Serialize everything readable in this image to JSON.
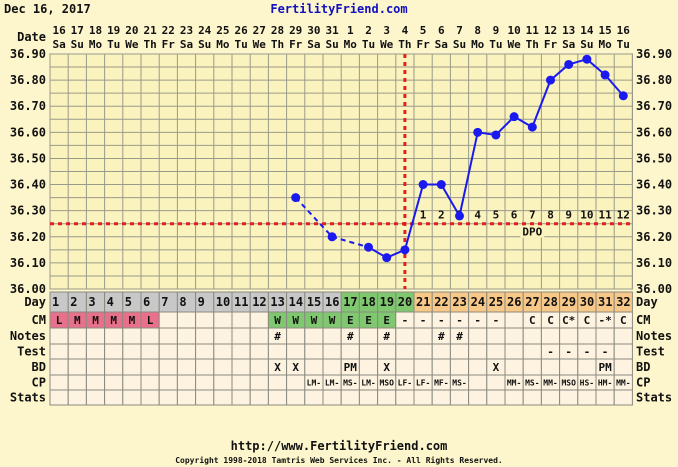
{
  "header": {
    "date": "Dec 16, 2017",
    "site": "FertilityFriend.com"
  },
  "footer": {
    "url": "http://www.FertilityFriend.com",
    "copyright": "Copyright 1998-2018 Tamtris Web Services Inc. - All Rights Reserved."
  },
  "labels": {
    "date": "Date",
    "day": "Day",
    "cm": "CM",
    "notes": "Notes",
    "test": "Test",
    "bd": "BD",
    "cp": "CP",
    "stats": "Stats",
    "dpo": "DPO"
  },
  "colors": {
    "background": "#fdf5cc",
    "plot": "#fbf3bd",
    "temp_line": "#1a1aee",
    "coverline": "#e02020",
    "day_gray": "#c8c8c8",
    "day_green": "#80c870",
    "day_orange": "#f8c888",
    "cm_pink": "#e8708a",
    "cm_green": "#80c870",
    "cell": "#fdf3e0"
  },
  "chart_data": {
    "type": "line",
    "ylim": [
      36.0,
      36.9
    ],
    "ytick_labels": [
      "36.00",
      "36.10",
      "36.20",
      "36.30",
      "36.40",
      "36.50",
      "36.60",
      "36.70",
      "36.80",
      "36.90"
    ],
    "grid": true,
    "dates": [
      "16",
      "17",
      "18",
      "19",
      "20",
      "21",
      "22",
      "23",
      "24",
      "25",
      "26",
      "27",
      "28",
      "29",
      "30",
      "31",
      "1",
      "2",
      "3",
      "4",
      "5",
      "6",
      "7",
      "8",
      "9",
      "10",
      "11",
      "12",
      "13",
      "14",
      "15",
      "16"
    ],
    "weekdays": [
      "Sa",
      "Su",
      "Mo",
      "Tu",
      "We",
      "Th",
      "Fr",
      "Sa",
      "Su",
      "Mo",
      "Tu",
      "We",
      "Th",
      "Fr",
      "Sa",
      "Su",
      "Mo",
      "Tu",
      "We",
      "Th",
      "Fr",
      "Sa",
      "Su",
      "Mo",
      "Tu",
      "We",
      "Th",
      "Fr",
      "Sa",
      "Su",
      "Mo",
      "Tu"
    ],
    "cycle_days": [
      "1",
      "2",
      "3",
      "4",
      "5",
      "6",
      "7",
      "8",
      "9",
      "10",
      "11",
      "12",
      "13",
      "14",
      "15",
      "16",
      "17",
      "18",
      "19",
      "20",
      "21",
      "22",
      "23",
      "24",
      "25",
      "26",
      "27",
      "28",
      "29",
      "30",
      "31",
      "32"
    ],
    "temperatures": [
      null,
      null,
      null,
      null,
      null,
      null,
      null,
      null,
      null,
      null,
      null,
      null,
      null,
      36.35,
      null,
      36.2,
      null,
      36.16,
      36.12,
      36.15,
      36.4,
      36.4,
      36.28,
      36.6,
      36.59,
      36.66,
      36.62,
      36.8,
      36.86,
      36.88,
      36.82,
      36.74
    ],
    "coverline": 36.25,
    "ovulation_day": 20,
    "dpo_labels": [
      "1",
      "2",
      "3",
      "4",
      "5",
      "6",
      "7",
      "8",
      "9",
      "10",
      "11",
      "12"
    ]
  },
  "rows": {
    "cm": [
      "L",
      "M",
      "M",
      "M",
      "M",
      "L",
      "",
      "",
      "",
      "",
      "",
      "",
      "W",
      "W",
      "W",
      "W",
      "E",
      "E",
      "E",
      "-",
      "-",
      "-",
      "-",
      "-",
      "-",
      "",
      "C",
      "C",
      "C*",
      "C",
      "-*",
      "C"
    ],
    "notes": [
      "",
      "",
      "",
      "",
      "",
      "",
      "",
      "",
      "",
      "",
      "",
      "",
      "#",
      "",
      "",
      "",
      "#",
      "",
      "#",
      "",
      "",
      "#",
      "#",
      "",
      "",
      "",
      "",
      "",
      "",
      "",
      "",
      ""
    ],
    "test": [
      "",
      "",
      "",
      "",
      "",
      "",
      "",
      "",
      "",
      "",
      "",
      "",
      "",
      "",
      "",
      "",
      "",
      "",
      "",
      "",
      "",
      "",
      "",
      "",
      "",
      "",
      "",
      "-",
      "-",
      "-",
      "-",
      ""
    ],
    "bd": [
      "",
      "",
      "",
      "",
      "",
      "",
      "",
      "",
      "",
      "",
      "",
      "",
      "X",
      "X",
      "",
      "",
      "PM",
      "",
      "X",
      "",
      "",
      "",
      "",
      "",
      "X",
      "",
      "",
      "",
      "",
      "",
      "PM",
      ""
    ],
    "cp": [
      "",
      "",
      "",
      "",
      "",
      "",
      "",
      "",
      "",
      "",
      "",
      "",
      "",
      "",
      "LM-",
      "LM-",
      "MS-",
      "LM-",
      "MSO",
      "LF-",
      "LF-",
      "MF-",
      "MS-",
      "",
      "",
      "MM-",
      "MS-",
      "MM-",
      "MSO",
      "HS-",
      "HM-",
      "MM-"
    ],
    "stats": [
      "",
      "",
      "",
      "",
      "",
      "",
      "",
      "",
      "",
      "",
      "",
      "",
      "",
      "",
      "",
      "",
      "",
      "",
      "",
      "",
      "",
      "",
      "",
      "",
      "",
      "",
      "",
      "",
      "",
      "",
      "",
      ""
    ]
  }
}
